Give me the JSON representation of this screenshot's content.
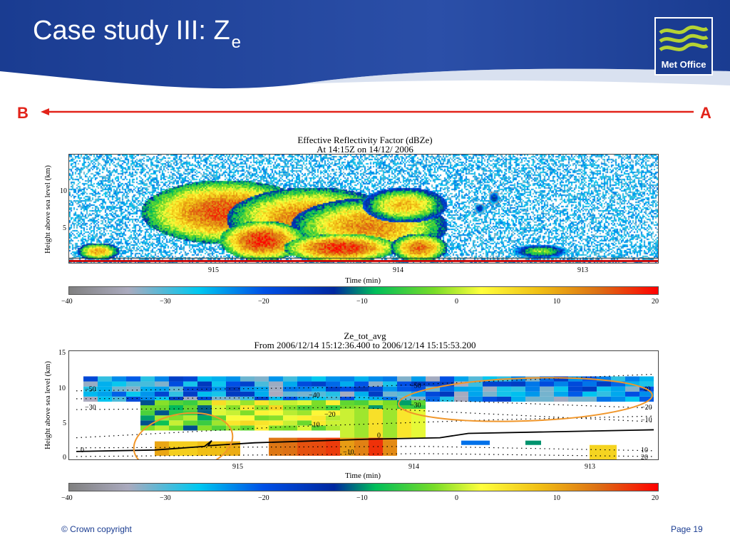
{
  "slide": {
    "title_main": "Case study III: Z",
    "title_sub": "e",
    "logo_text": "Met Office",
    "marker_left": "B",
    "marker_right": "A",
    "footer_left": "© Crown copyright",
    "footer_right": "Page 19",
    "colors": {
      "header_blue": "#1a3c91",
      "accent_red": "#e2231a",
      "logo_green": "#b5d334"
    }
  },
  "chart_data": [
    {
      "type": "heatmap",
      "title": "Effective Reflectivity Factor (dBZe)",
      "subtitle": "At 14:15Z on 14/12/ 2006",
      "xlabel": "Time (min)",
      "ylabel": "Height above sea level (km)",
      "xticks": [
        "915",
        "914",
        "913"
      ],
      "yticks": [
        "5",
        "10"
      ],
      "colorbar": {
        "min": -40,
        "max": 20,
        "ticks": [
          "−40",
          "−30",
          "−20",
          "−10",
          "0",
          "10",
          "20"
        ]
      },
      "x_reversed": true,
      "cloud_band_dbz": 15,
      "noise_dbz": -25
    },
    {
      "type": "heatmap",
      "title": "Ze_tot_avg",
      "subtitle": "From 2006/12/14 15:12:36.400 to 2006/12/14 15:15:53.200",
      "xlabel": "Time (min)",
      "ylabel": "Height above sea level (km)",
      "xticks": [
        "915",
        "914",
        "913"
      ],
      "yticks": [
        "0",
        "5",
        "10",
        "15"
      ],
      "ylim": [
        0,
        15
      ],
      "colorbar": {
        "min": -40,
        "max": 20,
        "ticks": [
          "−40",
          "−30",
          "−20",
          "−10",
          "0",
          "10",
          "20"
        ]
      },
      "contour_labels": [
        "−50",
        "−30",
        "−40",
        "−20",
        "−10",
        "0",
        "−10",
        "−50",
        "−30",
        "−40",
        "−20",
        "−10",
        "10",
        "20",
        "0"
      ]
    }
  ]
}
